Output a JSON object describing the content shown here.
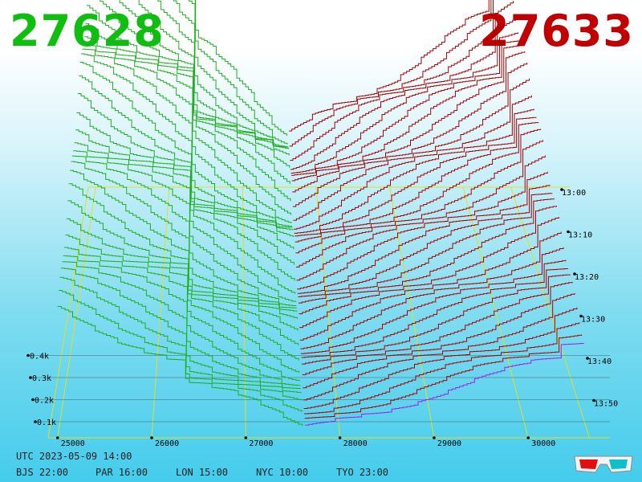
{
  "header": {
    "bid_price": "27628",
    "ask_price": "27633",
    "bid_color": "#0fbf0f",
    "ask_color": "#c00000"
  },
  "footer": {
    "utc": "UTC 2023-05-09 14:00",
    "zones": [
      "BJS 22:00",
      "PAR 16:00",
      "LON 15:00",
      "NYC 10:00",
      "TYO 23:00"
    ]
  },
  "chart_data": {
    "type": "3d-depth",
    "title": "",
    "x_axis": {
      "ticks": [
        25000,
        26000,
        27000,
        28000,
        29000,
        30000
      ],
      "tick_labels": [
        "25000",
        "26000",
        "27000",
        "28000",
        "29000",
        "30000"
      ]
    },
    "y_axis": {
      "ticks": [
        100,
        200,
        300,
        400
      ],
      "tick_labels": [
        "0.1k",
        "0.2k",
        "0.3k",
        "0.4k"
      ]
    },
    "z_axis": {
      "tick_labels": [
        "13:00",
        "13:10",
        "13:20",
        "13:30",
        "13:40",
        "13:50"
      ]
    },
    "mid_price": 27630,
    "series": [
      {
        "side": "bid",
        "color": "#1fae1f"
      },
      {
        "side": "ask",
        "color": "#a80000"
      },
      {
        "side": "latest",
        "color": "#a020f0"
      }
    ],
    "grid": true,
    "icon": "3d-glasses-icon"
  }
}
